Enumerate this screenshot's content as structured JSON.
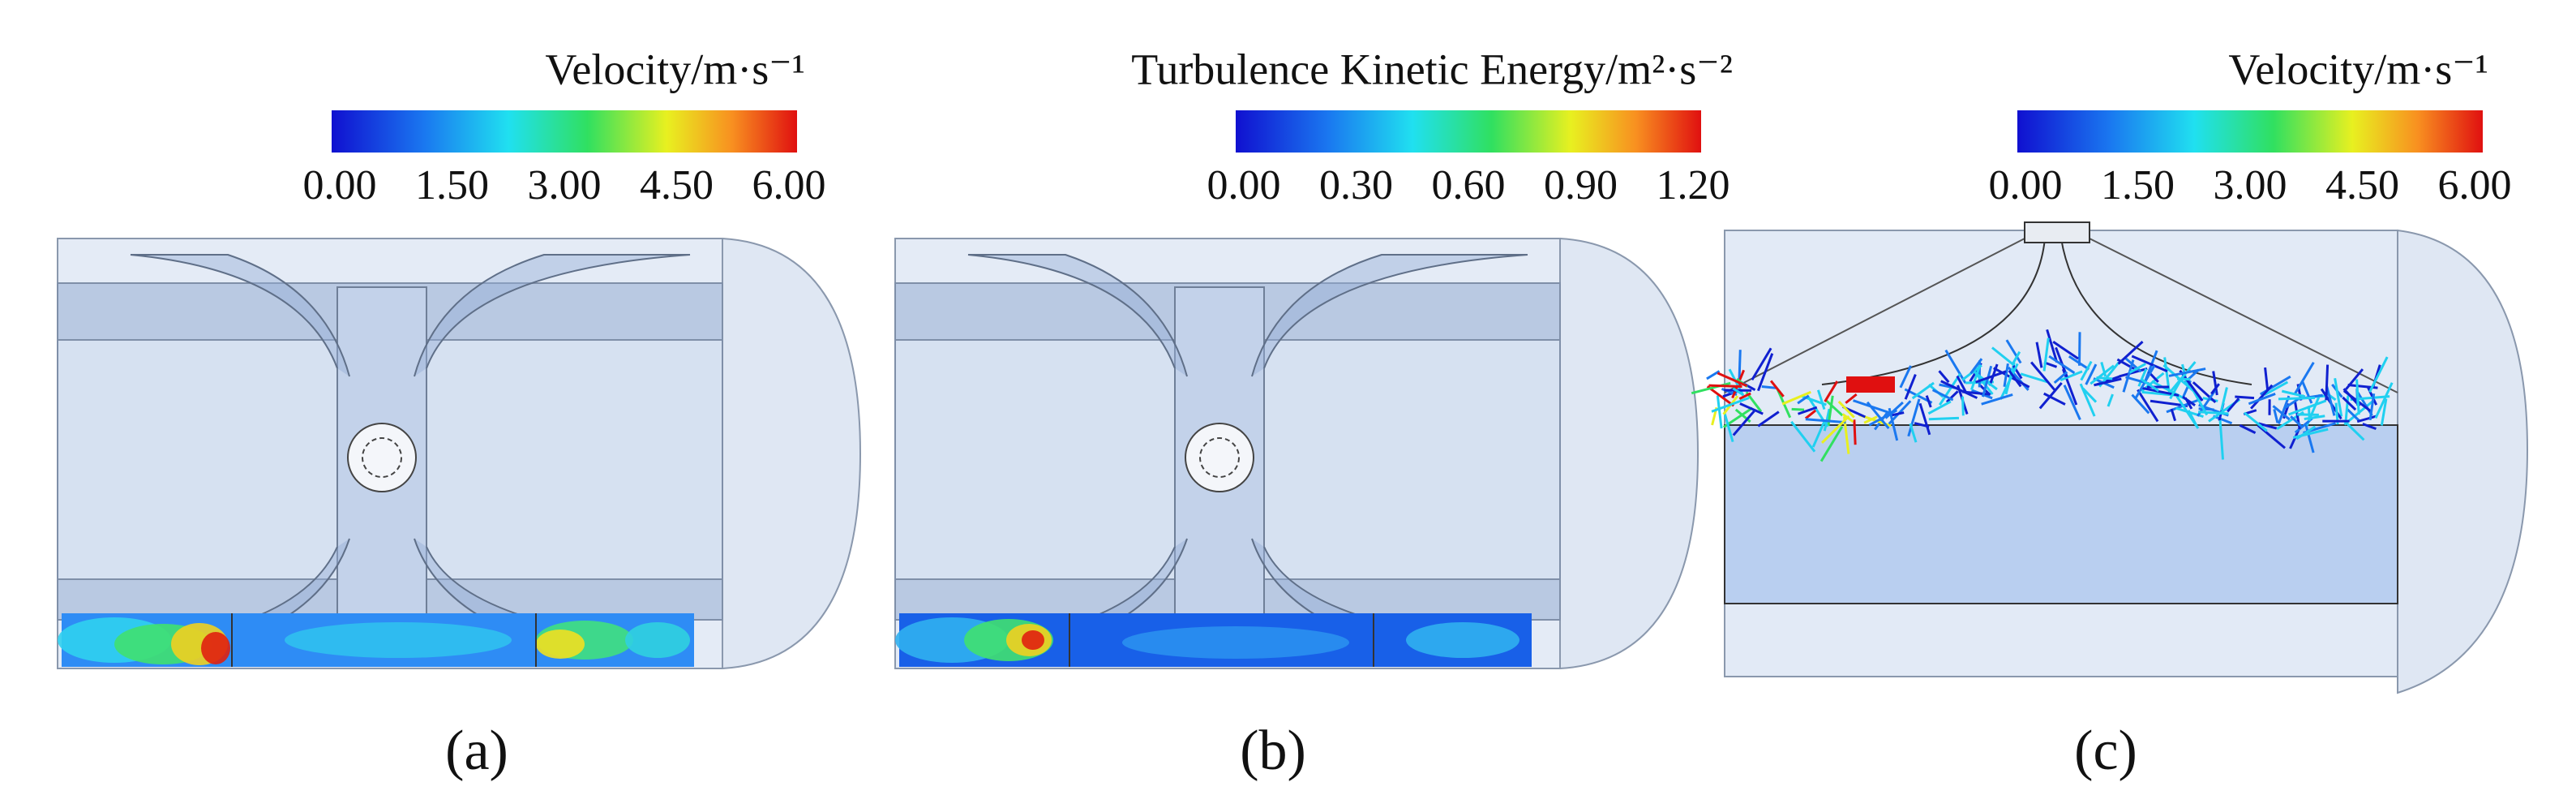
{
  "panels": [
    {
      "colorbar": {
        "title": "Velocity/m·s⁻¹",
        "ticks": [
          "0.00",
          "1.50",
          "3.00",
          "4.50",
          "6.00"
        ]
      },
      "label": "(a)"
    },
    {
      "colorbar": {
        "title": "Turbulence Kinetic Energy/m²·s⁻²",
        "ticks": [
          "0.00",
          "0.30",
          "0.60",
          "0.90",
          "1.20"
        ]
      },
      "label": "(b)"
    },
    {
      "colorbar": {
        "title": "Velocity/m·s⁻¹",
        "ticks": [
          "0.00",
          "1.50",
          "3.00",
          "4.50",
          "6.00"
        ]
      },
      "label": "(c)"
    }
  ]
}
